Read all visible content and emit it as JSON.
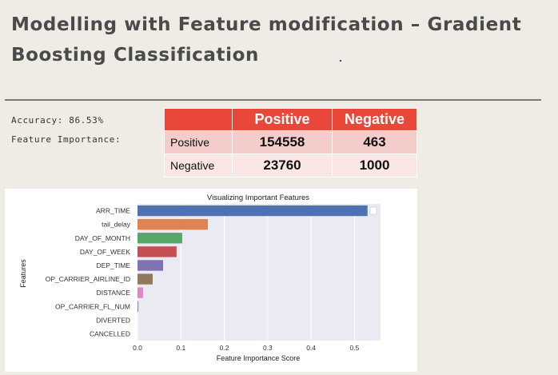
{
  "slide": {
    "title": "Modelling with Feature modification – Gradient Boosting Classification",
    "accuracy_label": "Accuracy: 86.53%",
    "feature_importance_label": "Feature Importance:"
  },
  "confusion_matrix": {
    "col_headers": [
      "Positive",
      "Negative"
    ],
    "rows": [
      {
        "label": "Positive",
        "values": [
          "154558",
          "463"
        ]
      },
      {
        "label": "Negative",
        "values": [
          "23760",
          "1000"
        ]
      }
    ]
  },
  "colors": {
    "header_red": "#E8473A",
    "row1": "#F4CDCB",
    "row2": "#F9E6E5"
  },
  "chart_data": {
    "type": "bar",
    "orientation": "horizontal",
    "title": "Visualizing Important Features",
    "xlabel": "Feature Importance Score",
    "ylabel": "Features",
    "categories": [
      "ARR_TIME",
      "tail_delay",
      "DAY_OF_MONTH",
      "DAY_OF_WEEK",
      "DEP_TIME",
      "OP_CARRIER_AIRLINE_ID",
      "DISTANCE",
      "OP_CARRIER_FL_NUM",
      "DIVERTED",
      "CANCELLED"
    ],
    "values": [
      0.53,
      0.162,
      0.103,
      0.09,
      0.059,
      0.035,
      0.013,
      0.002,
      0.0,
      0.0
    ],
    "colors": [
      "#4C72B0",
      "#DD8452",
      "#55A868",
      "#C44E52",
      "#8172B3",
      "#937860",
      "#DA8BC3",
      "#8C8C8C",
      "#CCB974",
      "#64B5CD"
    ],
    "xlim": [
      0,
      0.56
    ],
    "xticks": [
      "0.0",
      "0.1",
      "0.2",
      "0.3",
      "0.4",
      "0.5"
    ],
    "grid": true
  }
}
